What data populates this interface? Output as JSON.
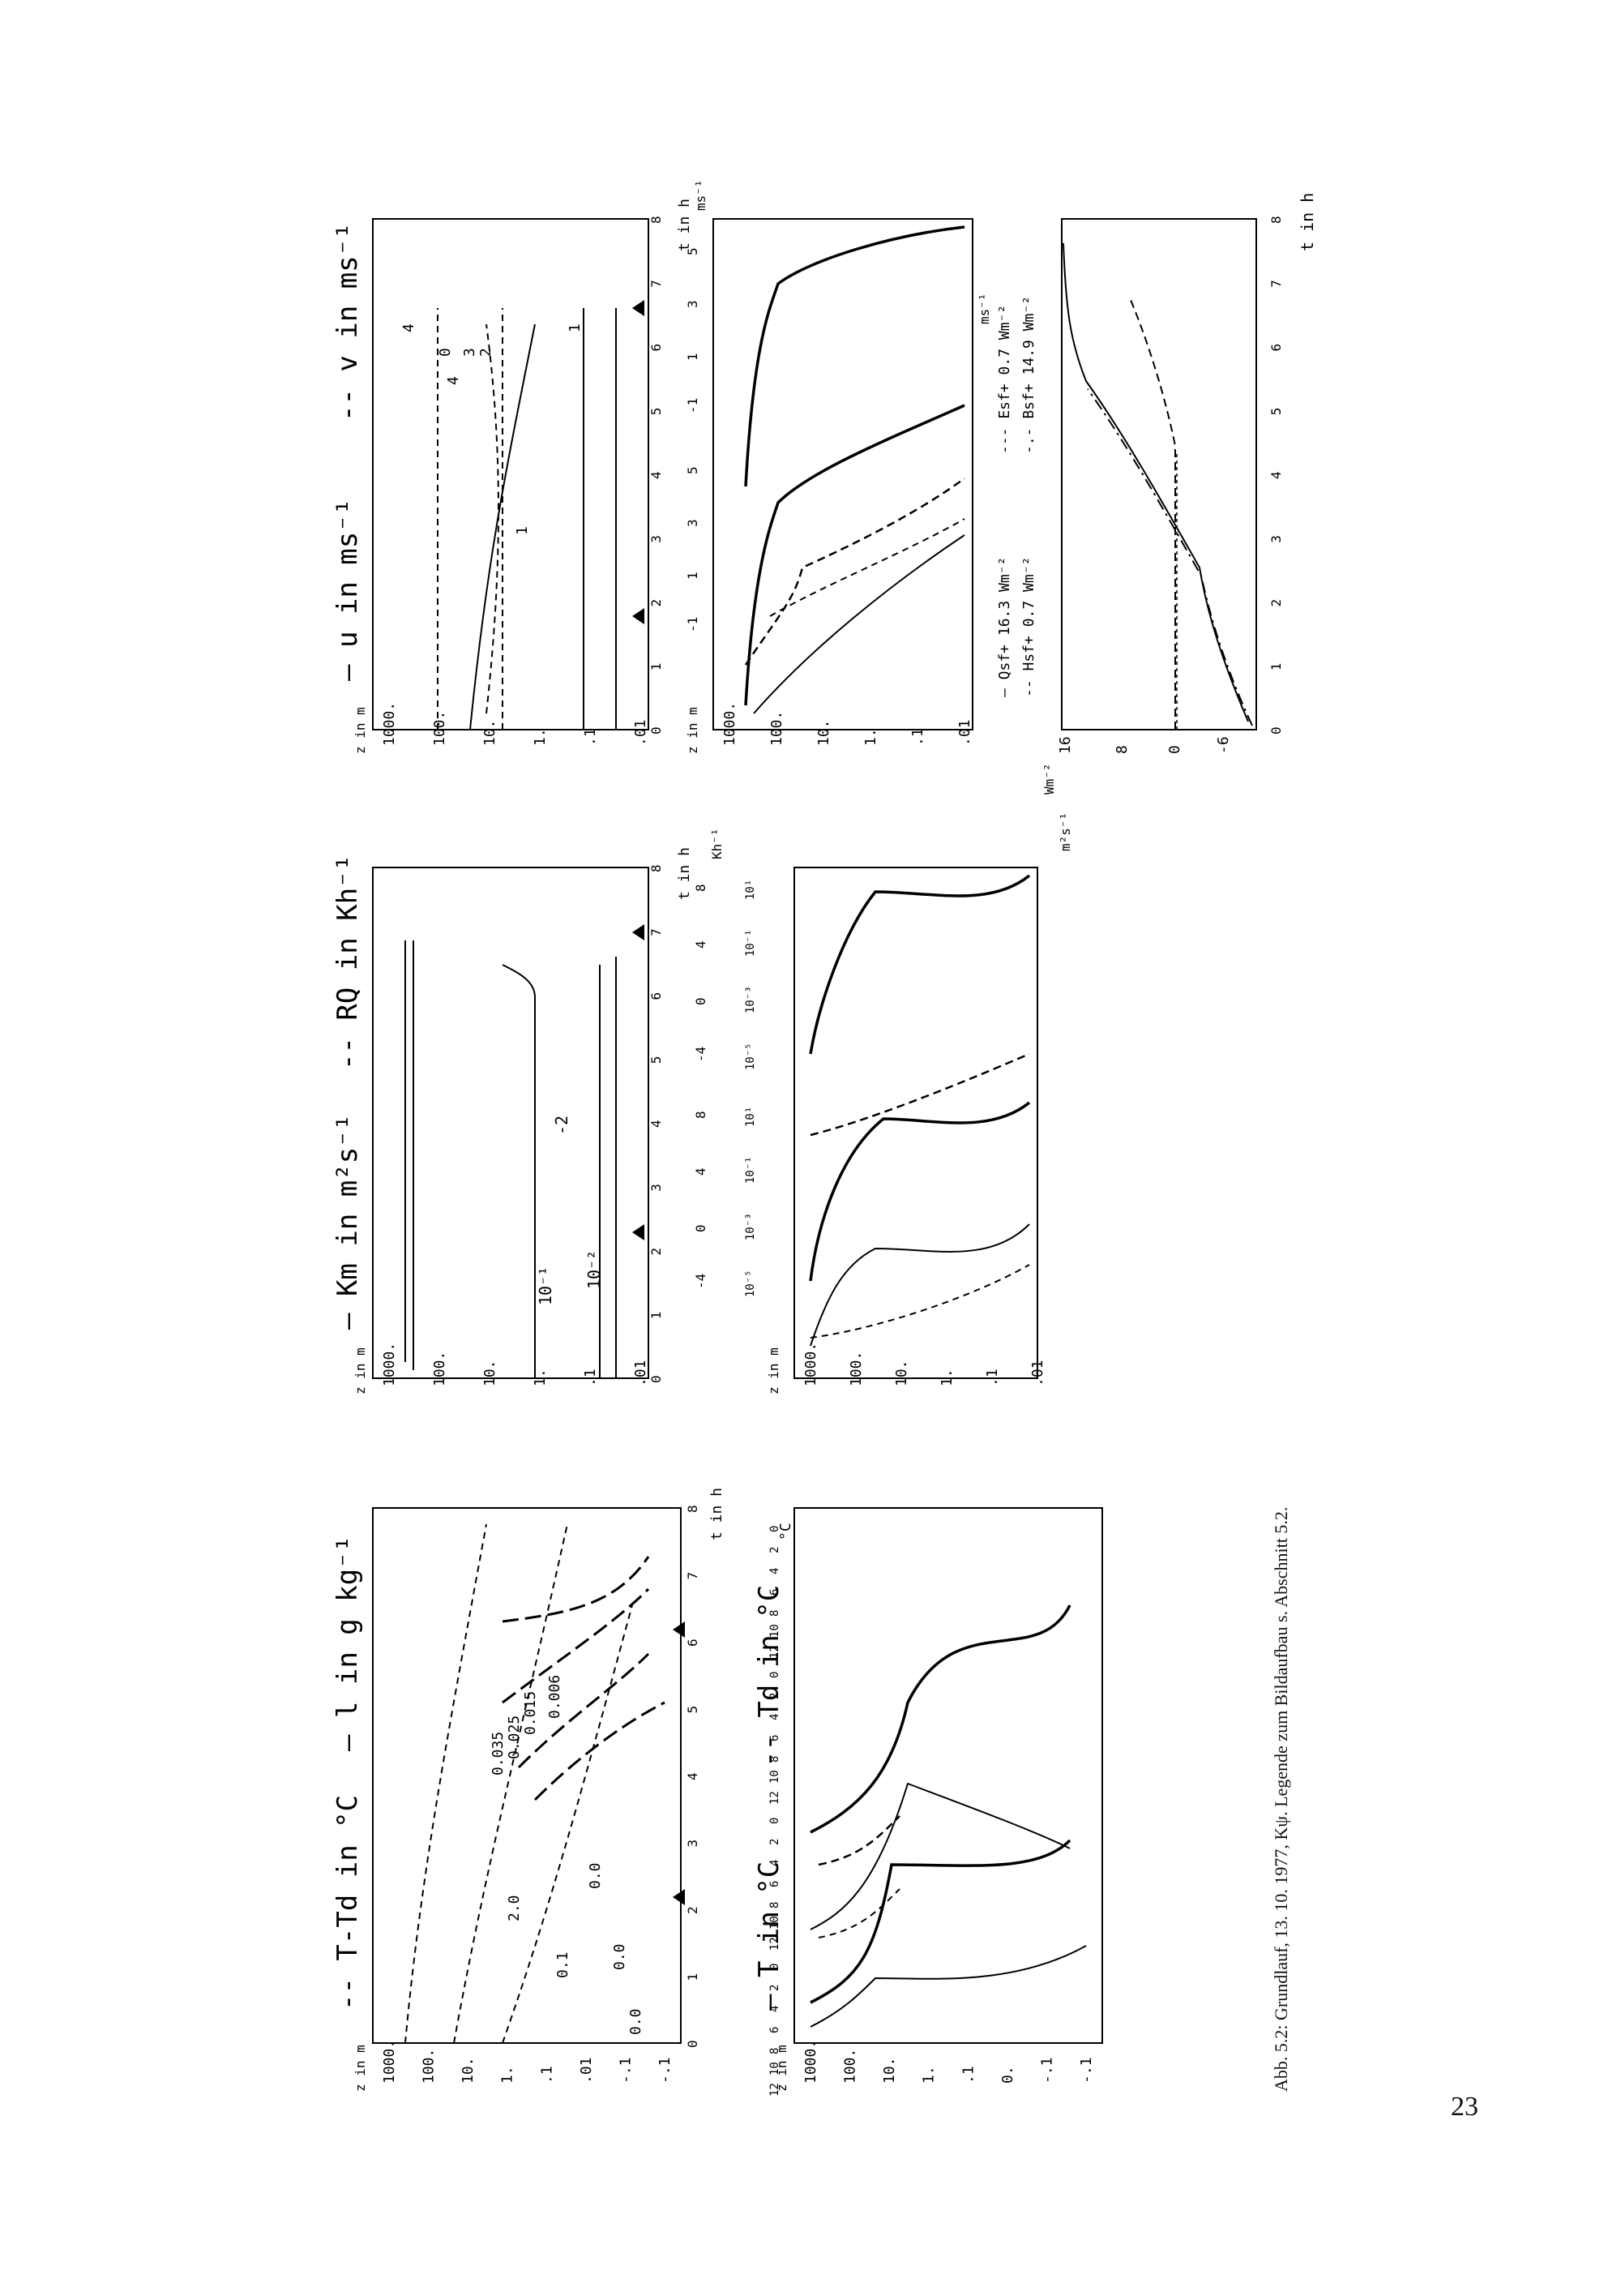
{
  "figure": {
    "caption": "Abb. 5.2: Grundlauf, 13. 10. 1977, Kψ. Legende zum Bildaufbau s. Abschnitt 5.2.",
    "page_number": "23"
  },
  "panels": {
    "temp_top": {
      "title_left": "-- T-Td in °C",
      "title_right": "— l in g kg⁻¹",
      "zlabel": "z in m",
      "zticks": [
        "1000.",
        "100.",
        "10.",
        "1.",
        ".1",
        ".01",
        "-.1",
        "-.1"
      ],
      "tticks": [
        "0",
        "1",
        "2",
        "3",
        "4",
        "5",
        "6",
        "7",
        "8"
      ],
      "tlabel": "t in h",
      "contour_labels": [
        "0.006",
        "0.015",
        "0.025",
        "0.035",
        "0.0",
        "2.0",
        "0.1",
        "0.0",
        "0.0"
      ]
    },
    "temp_bottom": {
      "title_left": "— T in °C",
      "title_right": "-- Td in °C",
      "zlabel": "z in m",
      "zticks": [
        "1000.",
        "100.",
        "10.",
        "1.",
        ".1",
        "0.",
        "-.1",
        "-.1"
      ],
      "unit": "°C",
      "scale_ticks": [
        "0",
        "2",
        "4",
        "6",
        "8",
        "10",
        "12"
      ]
    },
    "km_top": {
      "title_left": "— Km in m²s⁻¹",
      "title_right": "-- RQ in Kh⁻¹",
      "zlabel": "z in m",
      "zticks": [
        "1000.",
        "100.",
        "10.",
        "1.",
        ".1",
        ".01"
      ],
      "tticks": [
        "0",
        "1",
        "2",
        "3",
        "4",
        "5",
        "6",
        "7",
        "8"
      ],
      "tlabel": "t in h",
      "contour_labels": [
        "10⁻¹",
        "10⁻²",
        "-2"
      ]
    },
    "km_bottom": {
      "zlabel": "z in m",
      "zticks": [
        "1000.",
        "100.",
        "10.",
        "1.",
        ".1",
        ".01"
      ],
      "unit_top": "Kh⁻¹",
      "unit_km": "m²s⁻¹",
      "r_ticks": [
        "-4",
        "0",
        "4",
        "8"
      ],
      "k_ticks": [
        "10⁻⁵",
        "10⁻³",
        "10⁻¹",
        "10¹"
      ]
    },
    "wind_top": {
      "title_left": "— u in ms⁻¹",
      "title_right": "-- v in ms⁻¹",
      "zlabel": "z in m",
      "zticks": [
        "1000.",
        "100.",
        "10.",
        "1.",
        ".1",
        ".01"
      ],
      "tticks": [
        "0",
        "1",
        "2",
        "3",
        "4",
        "5",
        "6",
        "7",
        "8"
      ],
      "tlabel": "t in h",
      "contour_labels": [
        "4",
        "0",
        "4",
        "3",
        "2",
        "1",
        "1"
      ]
    },
    "wind_bottom": {
      "zlabel": "z in m",
      "zticks": [
        "1000.",
        "100.",
        "10.",
        "1.",
        ".1",
        ".01"
      ],
      "unit": "ms⁻¹",
      "scale_ticks": [
        "-1",
        "1",
        "3",
        "5"
      ]
    },
    "energy": {
      "ylabel": "Wm⁻²",
      "yticks": [
        "16",
        "8",
        "0",
        "-6"
      ],
      "tticks": [
        "0",
        "1",
        "2",
        "3",
        "4",
        "5",
        "6",
        "7",
        "8"
      ],
      "tlabel": "t in h",
      "legend": [
        {
          "label": "— Qsf+ 16.3 Wm⁻²",
          "style": "solid"
        },
        {
          "label": "-- Hsf+ 0.7 Wm⁻²",
          "style": "dashed"
        },
        {
          "label": "--- Esf+ 0.7 Wm⁻²",
          "style": "dashed"
        },
        {
          "label": "-.- Bsf+ 14.9 Wm⁻²",
          "style": "dashdot"
        }
      ]
    }
  }
}
